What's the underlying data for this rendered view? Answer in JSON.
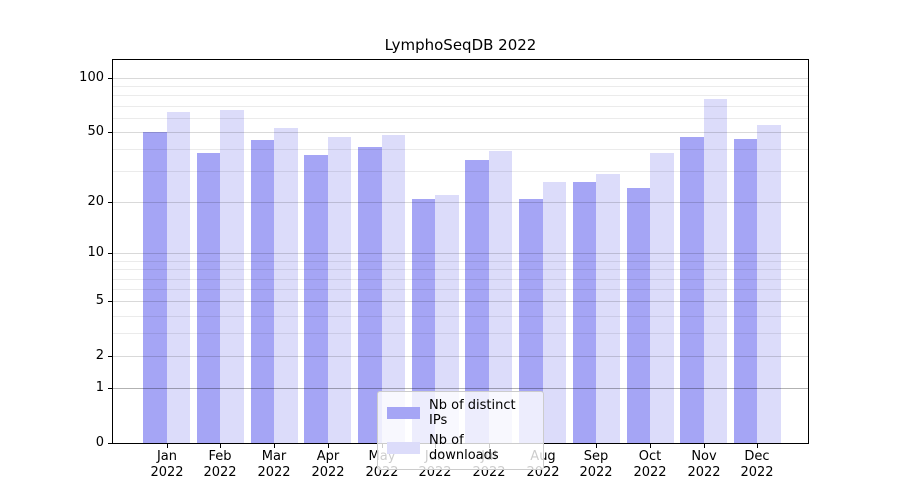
{
  "title": "LymphoSeqDB 2022",
  "colors": {
    "ips_bar": "#a5a5f5",
    "downloads_bar": "#dcdcfa",
    "axis": "#000000"
  },
  "y_axis": {
    "tick_labels": [
      "100",
      "50",
      "20",
      "10",
      "5",
      "2",
      "1",
      "0"
    ],
    "tick_values": [
      100,
      50,
      20,
      10,
      5,
      2,
      1,
      0
    ],
    "minor_gridline_values": [
      3,
      4,
      6,
      7,
      8,
      9,
      30,
      40,
      60,
      70,
      80,
      90
    ]
  },
  "x_axis": {
    "months": [
      "Jan",
      "Feb",
      "Mar",
      "Apr",
      "May",
      "Jun",
      "Jul",
      "Aug",
      "Sep",
      "Oct",
      "Nov",
      "Dec"
    ],
    "year": "2022"
  },
  "legend": {
    "items": [
      {
        "label": "Nb of distinct IPs",
        "color": "#a5a5f5"
      },
      {
        "label": "Nb of downloads",
        "color": "#dcdcfa"
      }
    ]
  },
  "chart_data": {
    "type": "bar",
    "title": "LymphoSeqDB 2022",
    "categories": [
      "Jan 2022",
      "Feb 2022",
      "Mar 2022",
      "Apr 2022",
      "May 2022",
      "Jun 2022",
      "Jul 2022",
      "Aug 2022",
      "Sep 2022",
      "Oct 2022",
      "Nov 2022",
      "Dec 2022"
    ],
    "series": [
      {
        "name": "Nb of distinct IPs",
        "color": "#a5a5f5",
        "values": [
          50,
          38,
          45,
          37,
          41,
          21,
          35,
          21,
          26,
          24,
          47,
          46
        ]
      },
      {
        "name": "Nb of downloads",
        "color": "#dcdcfa",
        "values": [
          65,
          66,
          53,
          47,
          48,
          22,
          39,
          26,
          29,
          38,
          76,
          55
        ]
      }
    ],
    "xlabel": "",
    "ylabel": "",
    "yscale": "log10(1+x)",
    "ylim": [
      0,
      126
    ],
    "y_ticks": [
      0,
      1,
      2,
      5,
      10,
      20,
      50,
      100
    ],
    "grid": "horizontal, major and minor",
    "legend_position": "lower center"
  }
}
